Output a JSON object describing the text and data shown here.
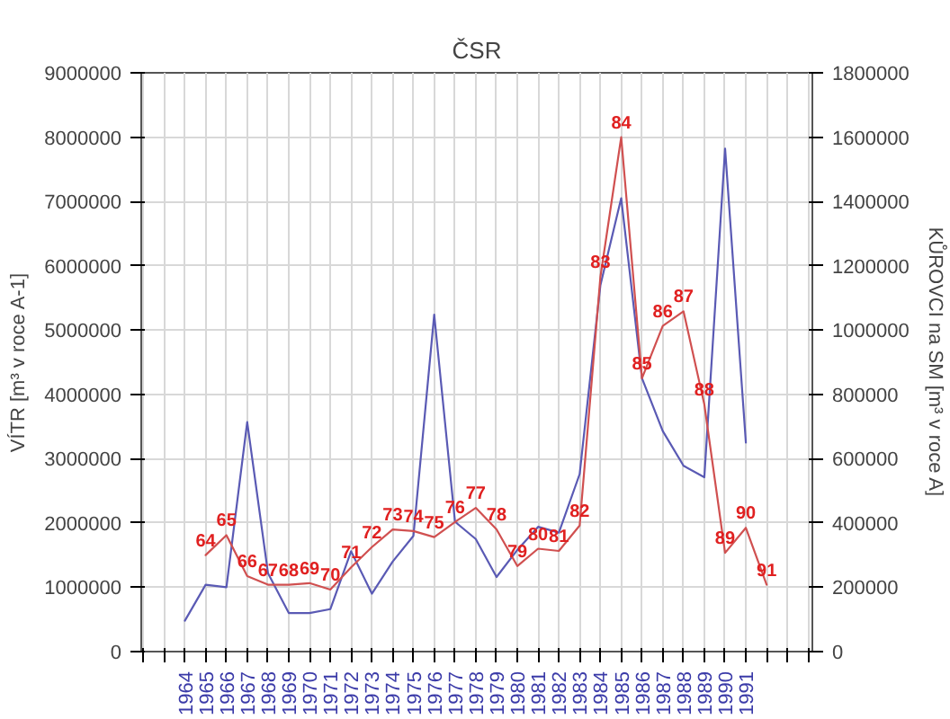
{
  "chart_data": {
    "type": "line",
    "title": "ČSR",
    "ylabel": "VÍTR [m³ v roce A-1]",
    "y2label": "KŮROVCI na SM [m³ v roce A]",
    "xlim": [
      1961.9,
      1994.2
    ],
    "xticks": [
      {
        "value": 1962,
        "label": null
      },
      {
        "value": 1963,
        "label": null
      },
      1964,
      1965,
      1966,
      1967,
      1968,
      1969,
      1970,
      1971,
      1972,
      1973,
      1974,
      1975,
      1976,
      1977,
      1978,
      1979,
      1980,
      1981,
      1982,
      1983,
      1984,
      1985,
      1986,
      1987,
      1988,
      1989,
      1990,
      1991,
      {
        "value": 1992,
        "label": null
      },
      {
        "value": 1993,
        "label": null
      },
      {
        "value": 1994,
        "label": null
      }
    ],
    "ylim": [
      0,
      9000000
    ],
    "yticks": [
      0,
      1000000,
      2000000,
      3000000,
      4000000,
      5000000,
      6000000,
      7000000,
      8000000,
      9000000
    ],
    "y2lim": [
      0,
      1800000
    ],
    "y2ticks": [
      0,
      200000,
      400000,
      600000,
      800000,
      1000000,
      1200000,
      1400000,
      1600000,
      1800000
    ],
    "grid": true,
    "line_style": "solid",
    "series": [
      {
        "color": "#5a5ab4",
        "x": [
          1964,
          1965,
          1966,
          1967,
          1968,
          1969,
          1970,
          1971,
          1972,
          1973,
          1974,
          1975,
          1976,
          1977,
          1978,
          1979,
          1980,
          1981,
          1982,
          1983,
          1984,
          1985,
          1986,
          1987,
          1988,
          1989,
          1990,
          1991
        ],
        "values": [
          480000,
          1040000,
          1000000,
          3570000,
          1220000,
          600000,
          600000,
          660000,
          1560000,
          900000,
          1400000,
          1800000,
          5240000,
          2020000,
          1750000,
          1160000,
          1580000,
          1940000,
          1850000,
          2760000,
          5700000,
          7050000,
          4250000,
          3430000,
          2890000,
          2710000,
          7820000,
          3250000
        ]
      },
      {
        "color": "#d05050",
        "axis": "y2",
        "x": [
          1965,
          1966,
          1967,
          1968,
          1969,
          1970,
          1971,
          1972,
          1973,
          1974,
          1975,
          1976,
          1977,
          1978,
          1979,
          1980,
          1981,
          1982,
          1983,
          1984,
          1985,
          1986,
          1987,
          1988,
          1989,
          1990,
          1991,
          1992
        ],
        "values": [
          300000,
          362000,
          235000,
          208000,
          208000,
          213000,
          193000,
          262000,
          325000,
          380000,
          375000,
          356000,
          403000,
          447000,
          380000,
          266000,
          320000,
          313000,
          392000,
          1166000,
          1600000,
          850000,
          1013000,
          1058000,
          769000,
          307000,
          385000,
          208000
        ]
      }
    ],
    "annotations": [
      "64",
      "65",
      "66",
      "67",
      "68",
      "69",
      "70",
      "71",
      "72",
      "73",
      "74",
      "75",
      "76",
      "77",
      "78",
      "79",
      "80",
      "81",
      "82",
      "83",
      "84",
      "85",
      "86",
      "87",
      "88",
      "89",
      "90",
      "91"
    ]
  }
}
